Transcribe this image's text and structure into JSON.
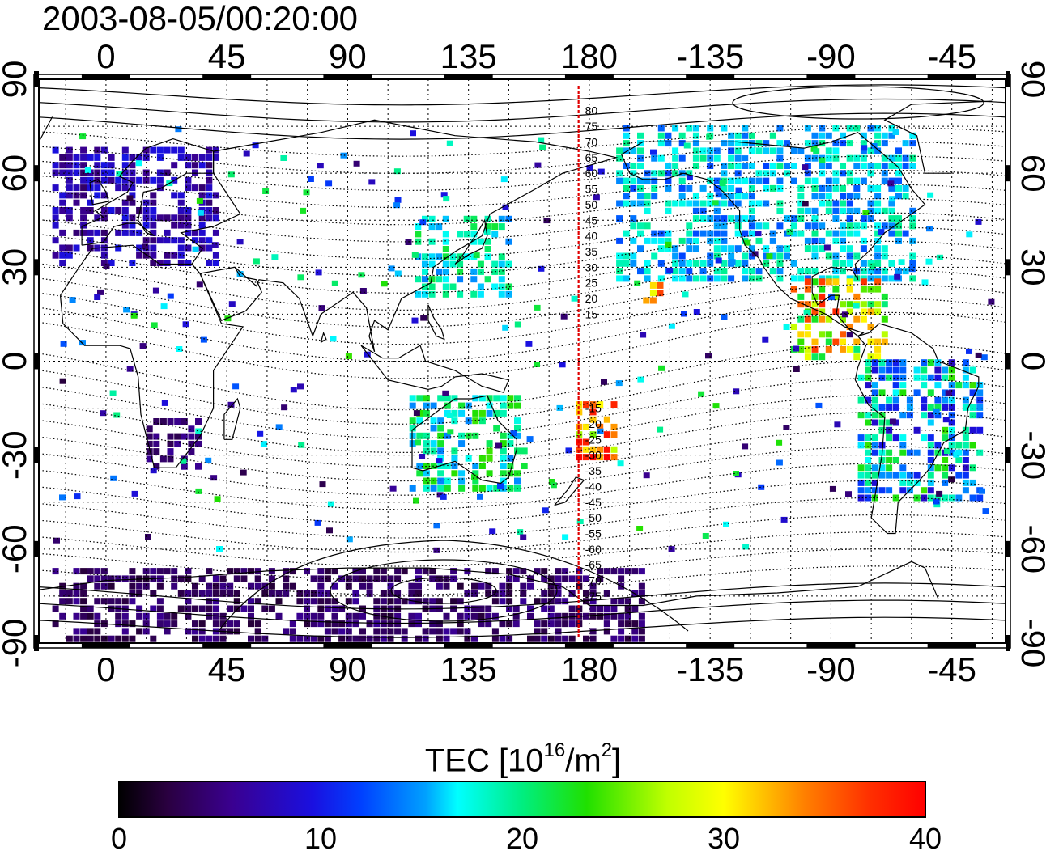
{
  "title": "2003-08-05/00:20:00",
  "map": {
    "top_lon_labels": [
      "0",
      "45",
      "90",
      "135",
      "180",
      "-135",
      "-90",
      "-45"
    ],
    "bottom_lon_labels": [
      "0",
      "45",
      "90",
      "135",
      "180",
      "-135",
      "-90",
      "-45"
    ],
    "left_lat_labels": [
      "90",
      "60",
      "30",
      "0",
      "-30",
      "-60",
      "-90"
    ],
    "right_lat_labels": [
      "90",
      "60",
      "30",
      "0",
      "-30",
      "-60",
      "-90"
    ],
    "meridian_labels": [
      "80",
      "75",
      "70",
      "65",
      "60",
      "55",
      "50",
      "45",
      "40",
      "35",
      "30",
      "25",
      "20",
      "15",
      "-15",
      "-20",
      "-25",
      "-30",
      "-35",
      "-40",
      "-45",
      "-50",
      "-55",
      "-60",
      "-65",
      "-70",
      "-75"
    ],
    "marker_line_color": "#e00000"
  },
  "colorbar": {
    "label_prefix": "TEC  [10",
    "label_sup1": "16",
    "label_mid": "/m",
    "label_sup2": "2",
    "label_suffix": "]",
    "ticks": [
      "0",
      "10",
      "20",
      "30",
      "40"
    ],
    "range": [
      0,
      40
    ]
  },
  "tec_regions": [
    {
      "name": "europe",
      "lon": [
        -20,
        40
      ],
      "lat": [
        30,
        68
      ],
      "tec": [
        4,
        10
      ]
    },
    {
      "name": "north-america",
      "lon": [
        -170,
        -60
      ],
      "lat": [
        25,
        75
      ],
      "tec": [
        12,
        20
      ]
    },
    {
      "name": "central-america",
      "lon": [
        -105,
        -70
      ],
      "lat": [
        0,
        25
      ],
      "tec": [
        20,
        38
      ]
    },
    {
      "name": "south-america",
      "lon": [
        -80,
        -35
      ],
      "lat": [
        -45,
        0
      ],
      "tec": [
        8,
        24
      ]
    },
    {
      "name": "japan-china",
      "lon": [
        115,
        150
      ],
      "lat": [
        20,
        45
      ],
      "tec": [
        14,
        22
      ]
    },
    {
      "name": "australia",
      "lon": [
        113,
        155
      ],
      "lat": [
        -42,
        -12
      ],
      "tec": [
        14,
        24
      ]
    },
    {
      "name": "pacific-tonga",
      "lon": [
        175,
        -170
      ],
      "lat": [
        -32,
        -15
      ],
      "tec": [
        25,
        40
      ]
    },
    {
      "name": "hawaii",
      "lon": [
        -160,
        -153
      ],
      "lat": [
        18,
        23
      ],
      "tec": [
        28,
        38
      ]
    },
    {
      "name": "southern-africa",
      "lon": [
        15,
        35
      ],
      "lat": [
        -35,
        -20
      ],
      "tec": [
        3,
        6
      ]
    },
    {
      "name": "antarctic",
      "lon": [
        -20,
        200
      ],
      "lat": [
        -90,
        -68
      ],
      "tec": [
        2,
        6
      ]
    }
  ]
}
